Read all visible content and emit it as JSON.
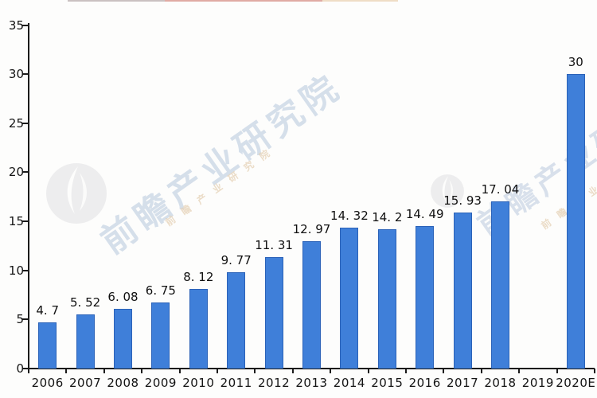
{
  "chart_data": {
    "type": "bar",
    "title": "",
    "xlabel": "",
    "ylabel": "",
    "categories": [
      "2006",
      "2007",
      "2008",
      "2009",
      "2010",
      "2011",
      "2012",
      "2013",
      "2014",
      "2015",
      "2016",
      "2017",
      "2018",
      "2019",
      "2020E"
    ],
    "values": [
      4.7,
      5.52,
      6.08,
      6.75,
      8.12,
      9.77,
      11.31,
      12.97,
      14.32,
      14.2,
      14.49,
      15.93,
      17.04,
      null,
      30
    ],
    "value_labels": [
      "4. 7",
      "5. 52",
      "6. 08",
      "6. 75",
      "8. 12",
      "9. 77",
      "11. 31",
      "12. 97",
      "14. 32",
      "14. 2",
      "14. 49",
      "15. 93",
      "17. 04",
      "",
      "30"
    ],
    "ylim": [
      0,
      35
    ],
    "yticks": [
      0,
      5,
      10,
      15,
      20,
      25,
      30,
      35
    ],
    "grid": false,
    "legend_position": "none",
    "bar_color": "#3f7fd9",
    "bar_border_color": "#2b62b8",
    "axis_color": "#1b1b1b"
  },
  "watermark": {
    "brand_text": "前瞻产业研究院",
    "sub_text": "前瞻产业研究院",
    "text_color": "#cfdae8",
    "sub_text_color": "#e5d1b6",
    "logo_color": "#ededee"
  },
  "artifacts": {
    "top_cropped_title_colors": [
      "#a09090",
      "#c45a4b",
      "#ddb583"
    ]
  }
}
